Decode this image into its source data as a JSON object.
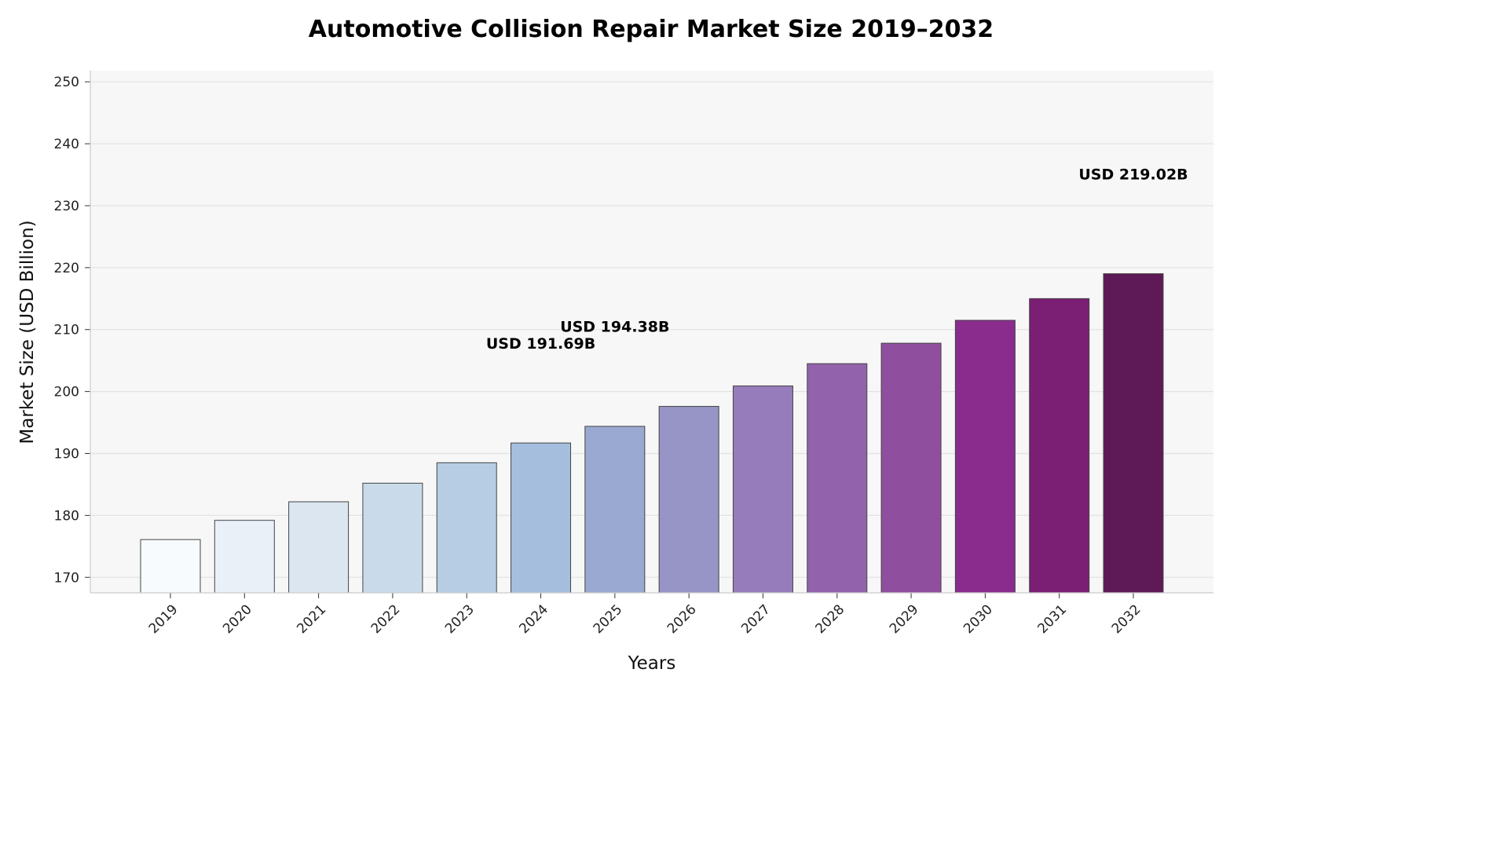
{
  "chart_data": {
    "type": "bar",
    "title": "Automotive Collision Repair Market Size 2019–2032",
    "xlabel": "Years",
    "ylabel": "Market Size (USD Billion)",
    "ylim": [
      167.5,
      251.8
    ],
    "yticks": [
      170,
      180,
      190,
      200,
      210,
      220,
      230,
      240,
      250
    ],
    "grid": "horizontal",
    "categories": [
      "2019",
      "2020",
      "2021",
      "2022",
      "2023",
      "2024",
      "2025",
      "2026",
      "2027",
      "2028",
      "2029",
      "2030",
      "2031",
      "2032"
    ],
    "values": [
      176.1,
      179.2,
      182.2,
      185.2,
      188.5,
      191.69,
      194.38,
      197.6,
      200.9,
      204.5,
      207.8,
      211.5,
      215.0,
      219.02
    ],
    "colors": [
      "#f7fbfd",
      "#e9f0f8",
      "#dbe6f1",
      "#c9dbea",
      "#b6cde4",
      "#a5bedd",
      "#9aa9d1",
      "#9695c5",
      "#967cba",
      "#9263ac",
      "#904e9f",
      "#8a2c8d",
      "#7a1f74",
      "#5e1957"
    ],
    "annotations": [
      {
        "category": "2024",
        "value": 191.69,
        "text": "USD 191.69B"
      },
      {
        "category": "2025",
        "value": 194.38,
        "text": "USD 194.38B"
      },
      {
        "category": "2032",
        "value": 219.02,
        "text": "USD 219.02B"
      }
    ],
    "background": "#f7f7f7"
  }
}
